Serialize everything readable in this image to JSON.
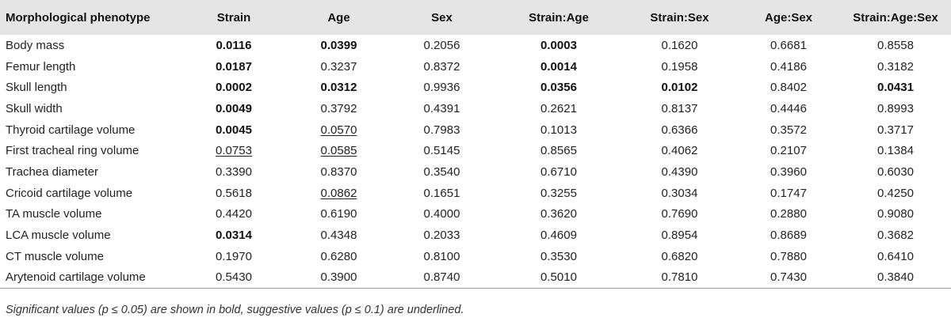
{
  "table": {
    "headers": [
      "Morphological phenotype",
      "Strain",
      "Age",
      "Sex",
      "Strain:Age",
      "Strain:Sex",
      "Age:Sex",
      "Strain:Age:Sex"
    ],
    "rows": [
      {
        "label": "Body mass",
        "cells": [
          {
            "v": "0.0116",
            "s": "bold"
          },
          {
            "v": "0.0399",
            "s": "bold"
          },
          {
            "v": "0.2056",
            "s": ""
          },
          {
            "v": "0.0003",
            "s": "bold"
          },
          {
            "v": "0.1620",
            "s": ""
          },
          {
            "v": "0.6681",
            "s": ""
          },
          {
            "v": "0.8558",
            "s": ""
          }
        ]
      },
      {
        "label": "Femur length",
        "cells": [
          {
            "v": "0.0187",
            "s": "bold"
          },
          {
            "v": "0.3237",
            "s": ""
          },
          {
            "v": "0.8372",
            "s": ""
          },
          {
            "v": "0.0014",
            "s": "bold"
          },
          {
            "v": "0.1958",
            "s": ""
          },
          {
            "v": "0.4186",
            "s": ""
          },
          {
            "v": "0.3182",
            "s": ""
          }
        ]
      },
      {
        "label": "Skull length",
        "cells": [
          {
            "v": "0.0002",
            "s": "bold"
          },
          {
            "v": "0.0312",
            "s": "bold"
          },
          {
            "v": "0.9936",
            "s": ""
          },
          {
            "v": "0.0356",
            "s": "bold"
          },
          {
            "v": "0.0102",
            "s": "bold"
          },
          {
            "v": "0.8402",
            "s": ""
          },
          {
            "v": "0.0431",
            "s": "bold"
          }
        ]
      },
      {
        "label": "Skull width",
        "cells": [
          {
            "v": "0.0049",
            "s": "bold"
          },
          {
            "v": "0.3792",
            "s": ""
          },
          {
            "v": "0.4391",
            "s": ""
          },
          {
            "v": "0.2621",
            "s": ""
          },
          {
            "v": "0.8137",
            "s": ""
          },
          {
            "v": "0.4446",
            "s": ""
          },
          {
            "v": "0.8993",
            "s": ""
          }
        ]
      },
      {
        "label": "Thyroid cartilage volume",
        "cells": [
          {
            "v": "0.0045",
            "s": "bold"
          },
          {
            "v": "0.0570",
            "s": "under"
          },
          {
            "v": "0.7983",
            "s": ""
          },
          {
            "v": "0.1013",
            "s": ""
          },
          {
            "v": "0.6366",
            "s": ""
          },
          {
            "v": "0.3572",
            "s": ""
          },
          {
            "v": "0.3717",
            "s": ""
          }
        ]
      },
      {
        "label": "First tracheal ring volume",
        "cells": [
          {
            "v": "0.0753",
            "s": "under"
          },
          {
            "v": "0.0585",
            "s": "under"
          },
          {
            "v": "0.5145",
            "s": ""
          },
          {
            "v": "0.8565",
            "s": ""
          },
          {
            "v": "0.4062",
            "s": ""
          },
          {
            "v": "0.2107",
            "s": ""
          },
          {
            "v": "0.1384",
            "s": ""
          }
        ]
      },
      {
        "label": "Trachea diameter",
        "cells": [
          {
            "v": "0.3390",
            "s": ""
          },
          {
            "v": "0.8370",
            "s": ""
          },
          {
            "v": "0.3540",
            "s": ""
          },
          {
            "v": "0.6710",
            "s": ""
          },
          {
            "v": "0.4390",
            "s": ""
          },
          {
            "v": "0.3960",
            "s": ""
          },
          {
            "v": "0.6030",
            "s": ""
          }
        ]
      },
      {
        "label": "Cricoid cartilage volume",
        "cells": [
          {
            "v": "0.5618",
            "s": ""
          },
          {
            "v": "0.0862",
            "s": "under"
          },
          {
            "v": "0.1651",
            "s": ""
          },
          {
            "v": "0.3255",
            "s": ""
          },
          {
            "v": "0.3034",
            "s": ""
          },
          {
            "v": "0.1747",
            "s": ""
          },
          {
            "v": "0.4250",
            "s": ""
          }
        ]
      },
      {
        "label": "TA muscle volume",
        "cells": [
          {
            "v": "0.4420",
            "s": ""
          },
          {
            "v": "0.6190",
            "s": ""
          },
          {
            "v": "0.4000",
            "s": ""
          },
          {
            "v": "0.3620",
            "s": ""
          },
          {
            "v": "0.7690",
            "s": ""
          },
          {
            "v": "0.2880",
            "s": ""
          },
          {
            "v": "0.9080",
            "s": ""
          }
        ]
      },
      {
        "label": "LCA muscle volume",
        "cells": [
          {
            "v": "0.0314",
            "s": "bold"
          },
          {
            "v": "0.4348",
            "s": ""
          },
          {
            "v": "0.2033",
            "s": ""
          },
          {
            "v": "0.4609",
            "s": ""
          },
          {
            "v": "0.8954",
            "s": ""
          },
          {
            "v": "0.8689",
            "s": ""
          },
          {
            "v": "0.3682",
            "s": ""
          }
        ]
      },
      {
        "label": "CT muscle volume",
        "cells": [
          {
            "v": "0.1970",
            "s": ""
          },
          {
            "v": "0.6280",
            "s": ""
          },
          {
            "v": "0.8100",
            "s": ""
          },
          {
            "v": "0.3530",
            "s": ""
          },
          {
            "v": "0.6820",
            "s": ""
          },
          {
            "v": "0.7880",
            "s": ""
          },
          {
            "v": "0.6410",
            "s": ""
          }
        ]
      },
      {
        "label": "Arytenoid cartilage volume",
        "cells": [
          {
            "v": "0.5430",
            "s": ""
          },
          {
            "v": "0.3900",
            "s": ""
          },
          {
            "v": "0.8740",
            "s": ""
          },
          {
            "v": "0.5010",
            "s": ""
          },
          {
            "v": "0.7810",
            "s": ""
          },
          {
            "v": "0.7430",
            "s": ""
          },
          {
            "v": "0.3840",
            "s": ""
          }
        ]
      }
    ]
  },
  "footnote": "Significant values (p ≤ 0.05) are shown in bold, suggestive values (p ≤ 0.1) are underlined."
}
